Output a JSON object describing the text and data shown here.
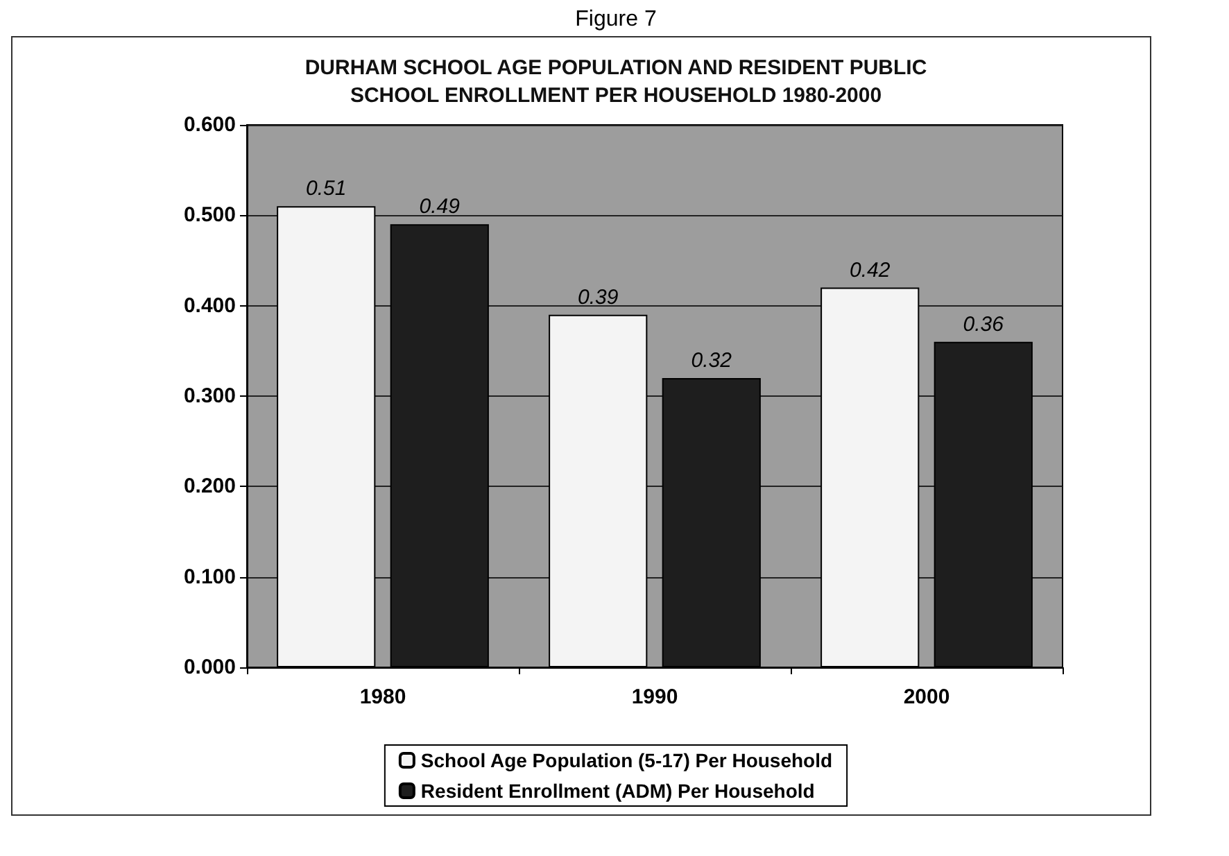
{
  "chart_data": {
    "type": "bar",
    "title": "DURHAM SCHOOL AGE POPULATION AND RESIDENT PUBLIC\nSCHOOL ENROLLMENT PER HOUSEHOLD 1980-2000",
    "annotations": [
      "Figure 7"
    ],
    "categories": [
      "1980",
      "1990",
      "2000"
    ],
    "series": [
      {
        "name": "School Age Population (5-17) Per Household",
        "color": "#f4f4f4",
        "values": [
          0.51,
          0.39,
          0.42
        ]
      },
      {
        "name": "Resident Enrollment (ADM) Per Household",
        "color": "#1e1e1e",
        "values": [
          0.49,
          0.32,
          0.36
        ]
      }
    ],
    "ylim": [
      0,
      0.6
    ],
    "yticks": [
      {
        "value": 0,
        "label": "0.000"
      },
      {
        "value": 0.1,
        "label": "0.100"
      },
      {
        "value": 0.2,
        "label": "0.200"
      },
      {
        "value": 0.3,
        "label": "0.300"
      },
      {
        "value": 0.4,
        "label": "0.400"
      },
      {
        "value": 0.5,
        "label": "0.500"
      },
      {
        "value": 0.6,
        "label": "0.600"
      }
    ],
    "grid": "y",
    "legend": "bottom",
    "data_labels": true
  }
}
